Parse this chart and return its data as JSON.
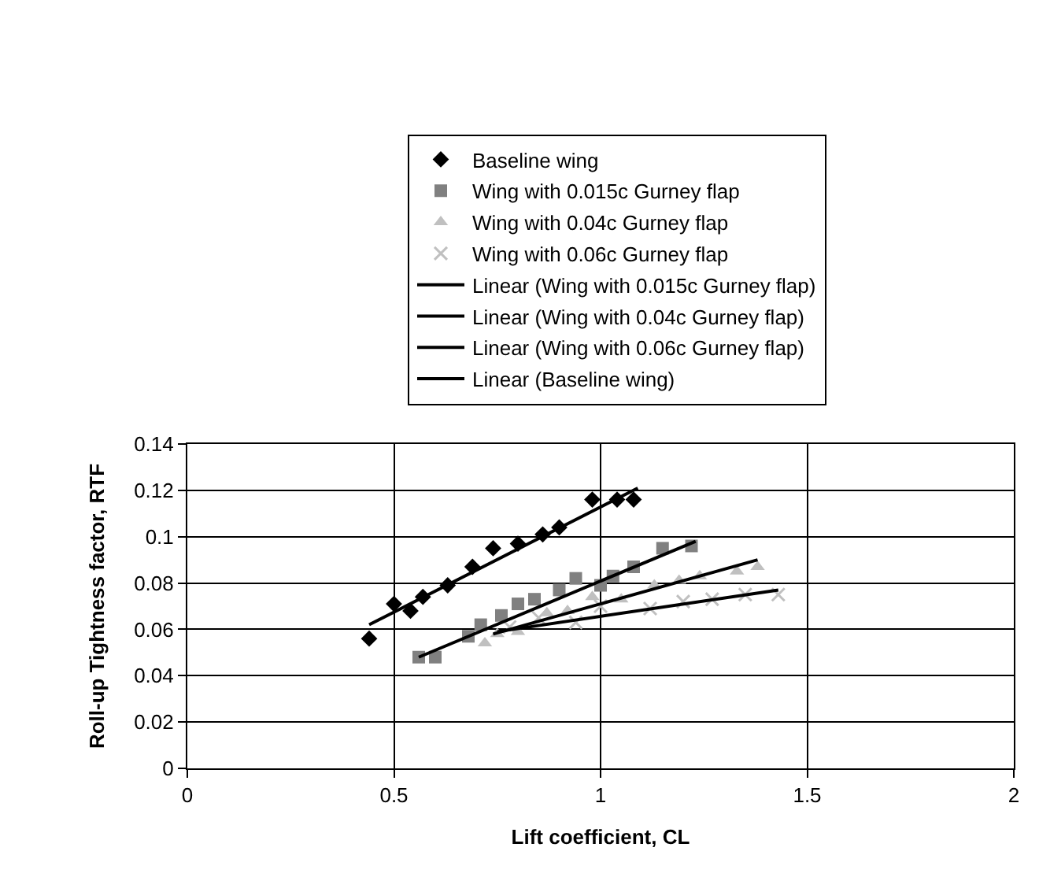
{
  "chart_data": {
    "type": "scatter",
    "xlabel": "Lift coefficient, CL",
    "ylabel": "Roll-up Tightness factor, RTF",
    "xlim": [
      0,
      2
    ],
    "xticks": [
      0,
      0.5,
      1,
      1.5,
      2
    ],
    "ylim": [
      0,
      0.14
    ],
    "yticks": [
      0,
      0.02,
      0.04,
      0.06,
      0.08,
      0.1,
      0.12,
      0.14
    ],
    "grid": true,
    "legend": "top",
    "series": [
      {
        "name": "Baseline wing",
        "color": "#000000",
        "marker": "diamond",
        "x": [
          0.44,
          0.5,
          0.54,
          0.57,
          0.63,
          0.69,
          0.74,
          0.8,
          0.86,
          0.9,
          0.98,
          1.04,
          1.08
        ],
        "values": [
          0.056,
          0.071,
          0.068,
          0.074,
          0.079,
          0.087,
          0.095,
          0.097,
          0.101,
          0.104,
          0.116,
          0.116,
          0.116
        ]
      },
      {
        "name": "Wing with 0.015c Gurney flap",
        "color": "#808080",
        "marker": "square",
        "x": [
          0.56,
          0.6,
          0.68,
          0.71,
          0.76,
          0.8,
          0.84,
          0.9,
          0.94,
          1.0,
          1.03,
          1.08,
          1.15,
          1.22
        ],
        "values": [
          0.048,
          0.048,
          0.057,
          0.062,
          0.066,
          0.071,
          0.073,
          0.077,
          0.082,
          0.079,
          0.083,
          0.087,
          0.095,
          0.096
        ]
      },
      {
        "name": "Wing with 0.04c Gurney flap",
        "color": "#c0c0c0",
        "marker": "triangle",
        "x": [
          0.72,
          0.75,
          0.8,
          0.87,
          0.92,
          0.98,
          1.05,
          1.13,
          1.19,
          1.24,
          1.33,
          1.38
        ],
        "values": [
          0.054,
          0.058,
          0.059,
          0.067,
          0.068,
          0.074,
          0.073,
          0.079,
          0.081,
          0.083,
          0.085,
          0.087
        ]
      },
      {
        "name": "Wing with 0.06c Gurney flap",
        "color": "#c0c0c0",
        "marker": "cross",
        "x": [
          0.78,
          0.85,
          0.94,
          1.0,
          1.12,
          1.2,
          1.27,
          1.35,
          1.43
        ],
        "values": [
          0.061,
          0.065,
          0.063,
          0.07,
          0.069,
          0.072,
          0.073,
          0.075,
          0.075
        ]
      },
      {
        "name": "Linear (Wing with 0.015c Gurney flap)",
        "type": "line",
        "color": "#000000",
        "x": [
          0.56,
          1.23
        ],
        "values": [
          0.048,
          0.098
        ]
      },
      {
        "name": "Linear (Wing with 0.04c Gurney flap)",
        "type": "line",
        "color": "#000000",
        "x": [
          0.74,
          1.38
        ],
        "values": [
          0.058,
          0.09
        ]
      },
      {
        "name": "Linear (Wing with 0.06c Gurney flap)",
        "type": "line",
        "color": "#000000",
        "x": [
          0.75,
          1.43
        ],
        "values": [
          0.059,
          0.077
        ]
      },
      {
        "name": "Linear (Baseline wing)",
        "type": "line",
        "color": "#000000",
        "x": [
          0.44,
          1.09
        ],
        "values": [
          0.062,
          0.121
        ]
      }
    ]
  }
}
